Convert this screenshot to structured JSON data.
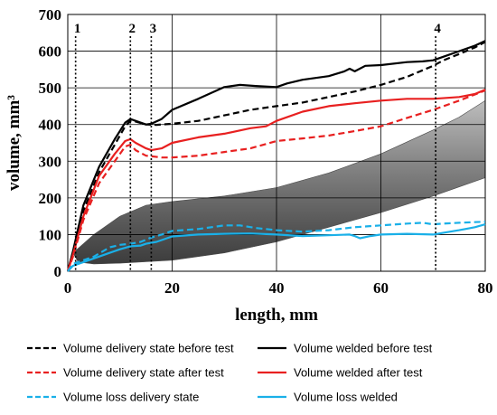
{
  "chart_data": {
    "type": "line",
    "xlabel": "length, mm",
    "ylabel": "volume, mm³",
    "xlim": [
      0,
      80
    ],
    "ylim": [
      0,
      700
    ],
    "xticks": [
      "0",
      "20",
      "40",
      "60",
      "80"
    ],
    "yticks": [
      "0",
      "100",
      "200",
      "300",
      "400",
      "500",
      "600",
      "700"
    ],
    "grid": true,
    "legend_position": "bottom",
    "background_image": "gray weld bead 3d scan",
    "markers": [
      {
        "label": "1",
        "x": 1.5
      },
      {
        "label": "2",
        "x": 12
      },
      {
        "label": "3",
        "x": 16
      },
      {
        "label": "4",
        "x": 70.5
      }
    ],
    "series": [
      {
        "name": "Volume delivery state before test",
        "color": "#000000",
        "style": "dashed",
        "x": [
          0,
          1,
          3,
          6,
          9,
          11,
          12,
          13,
          15,
          17,
          20,
          25,
          30,
          35,
          40,
          45,
          50,
          55,
          60,
          65,
          68,
          70,
          72,
          75,
          78,
          80
        ],
        "y": [
          0,
          50,
          165,
          270,
          345,
          395,
          410,
          408,
          400,
          399,
          402,
          410,
          425,
          440,
          450,
          460,
          475,
          490,
          508,
          530,
          548,
          560,
          575,
          592,
          610,
          625
        ]
      },
      {
        "name": "Volume welded before test",
        "color": "#000000",
        "style": "solid",
        "x": [
          0,
          1,
          3,
          6,
          9,
          11,
          12,
          13,
          15,
          16,
          18,
          20,
          25,
          30,
          33,
          36,
          40,
          42,
          45,
          50,
          53,
          54,
          55,
          57,
          60,
          65,
          68,
          70,
          72,
          75,
          78,
          80
        ],
        "y": [
          0,
          55,
          180,
          285,
          360,
          405,
          415,
          410,
          400,
          402,
          415,
          440,
          470,
          502,
          508,
          505,
          502,
          512,
          522,
          532,
          545,
          552,
          545,
          560,
          562,
          570,
          572,
          575,
          585,
          600,
          615,
          628
        ]
      },
      {
        "name": "Volume delivery state after test",
        "color": "#e82020",
        "style": "dashed",
        "x": [
          0,
          1,
          3,
          6,
          9,
          11,
          12,
          13,
          15,
          18,
          20,
          25,
          30,
          35,
          40,
          45,
          50,
          55,
          60,
          65,
          70,
          75,
          80
        ],
        "y": [
          0,
          40,
          140,
          240,
          300,
          340,
          345,
          330,
          315,
          310,
          310,
          315,
          325,
          335,
          355,
          362,
          370,
          382,
          395,
          418,
          440,
          465,
          493
        ]
      },
      {
        "name": "Volume welded after test",
        "color": "#e82020",
        "style": "solid",
        "x": [
          0,
          1,
          3,
          6,
          9,
          11,
          12,
          13,
          15,
          16,
          18,
          20,
          25,
          30,
          35,
          38,
          40,
          45,
          50,
          55,
          60,
          65,
          70,
          75,
          78,
          80
        ],
        "y": [
          0,
          45,
          150,
          260,
          320,
          355,
          360,
          350,
          335,
          330,
          335,
          350,
          365,
          375,
          390,
          395,
          410,
          435,
          450,
          458,
          465,
          470,
          470,
          475,
          483,
          495
        ]
      },
      {
        "name": "Volume loss delivery state",
        "color": "#1ab0e8",
        "style": "dashed",
        "x": [
          0,
          1,
          3,
          5,
          8,
          10,
          12,
          14,
          16,
          18,
          20,
          25,
          30,
          33,
          36,
          40,
          45,
          50,
          55,
          60,
          65,
          68,
          70,
          72,
          75,
          80
        ],
        "y": [
          0,
          20,
          30,
          40,
          65,
          72,
          75,
          80,
          92,
          100,
          110,
          115,
          125,
          125,
          118,
          112,
          108,
          112,
          120,
          125,
          130,
          132,
          128,
          130,
          132,
          135
        ]
      },
      {
        "name": "Volume loss welded",
        "color": "#1ab0e8",
        "style": "solid",
        "x": [
          0,
          1,
          3,
          5,
          8,
          10,
          12,
          14,
          15,
          17,
          20,
          25,
          30,
          35,
          40,
          45,
          50,
          54,
          55,
          56,
          58,
          60,
          65,
          70,
          72,
          75,
          78,
          80
        ],
        "y": [
          0,
          15,
          25,
          35,
          50,
          60,
          68,
          70,
          75,
          80,
          95,
          100,
          102,
          103,
          100,
          96,
          98,
          100,
          96,
          90,
          96,
          100,
          102,
          100,
          105,
          112,
          120,
          128
        ]
      }
    ]
  }
}
